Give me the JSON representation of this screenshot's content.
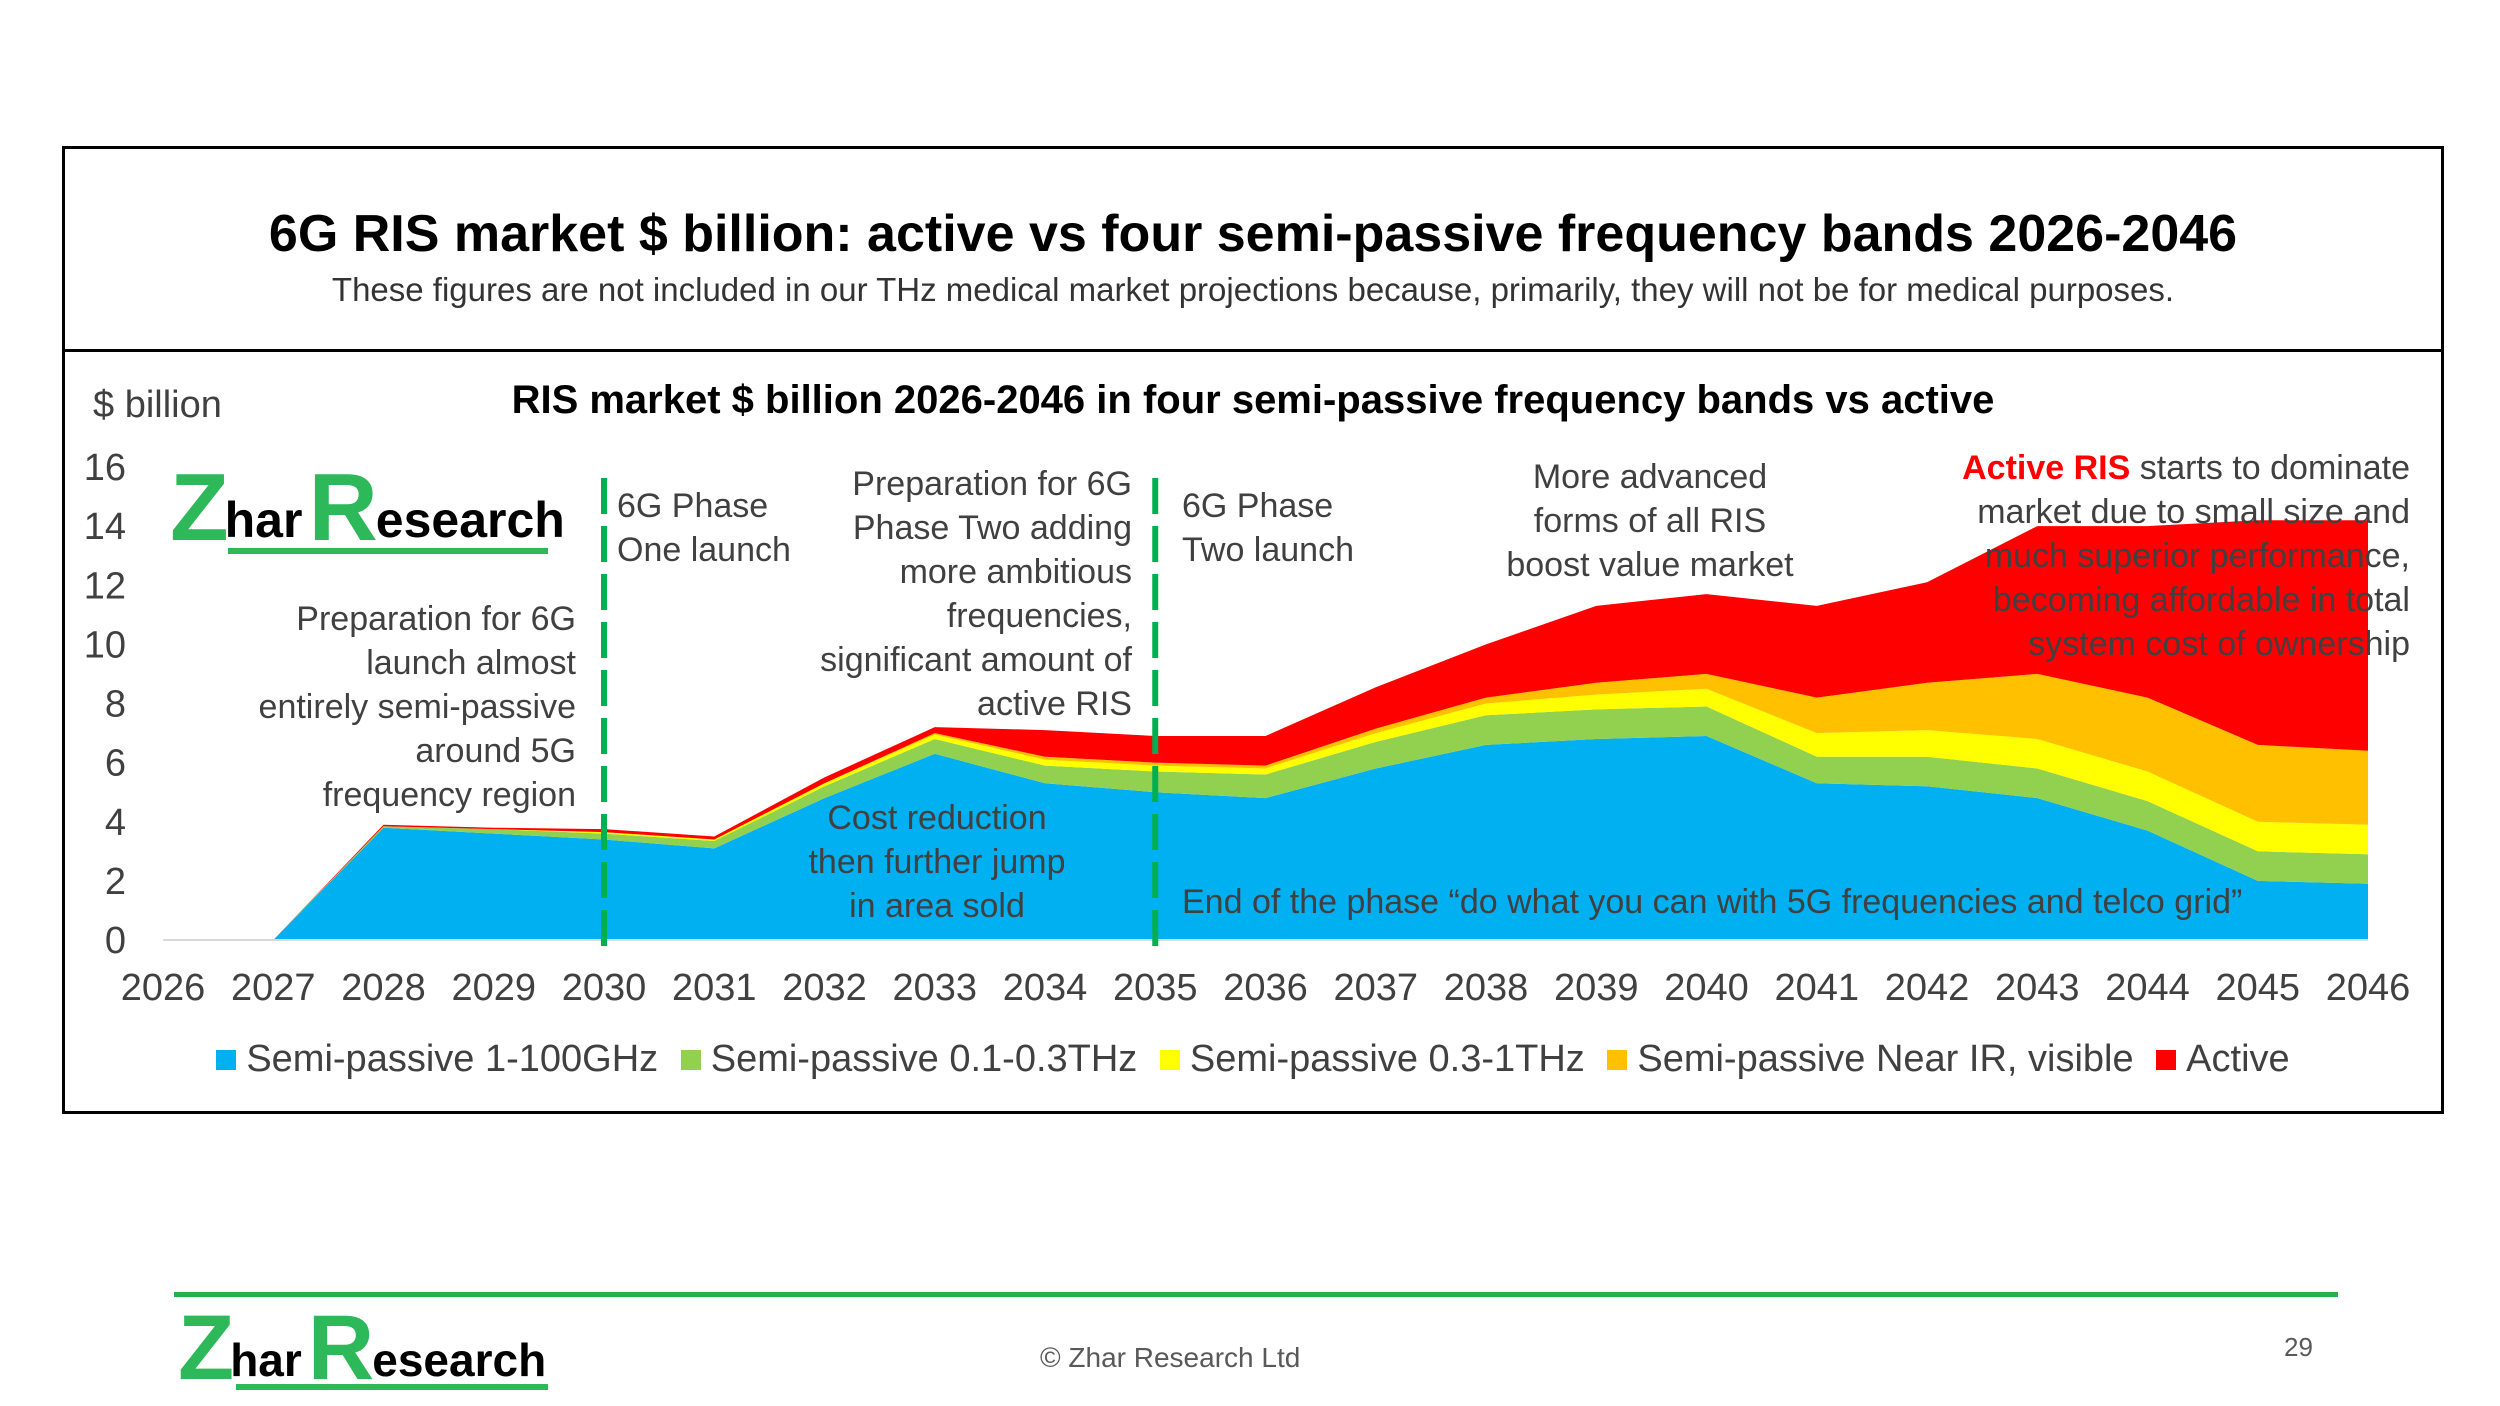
{
  "slide": {
    "title": "6G RIS market $ billion: active vs four semi-passive frequency bands 2026-2046",
    "subtitle": "These figures are not included in our THz medical market projections because, primarily, they will not be for medical purposes."
  },
  "logo": {
    "z": "Z",
    "har": "har",
    "r": "R",
    "esearch": "esearch",
    "brand_color": "#2db85a"
  },
  "chart_data": {
    "type": "area",
    "stacked": true,
    "title": "RIS market $ billion 2026-2046 in four semi-passive frequency bands vs active",
    "ylabel": "$ billion",
    "xlabel": "",
    "ylim": [
      0,
      16
    ],
    "yticks": [
      0,
      2,
      4,
      6,
      8,
      10,
      12,
      14,
      16
    ],
    "x": [
      "2026",
      "2027",
      "2028",
      "2029",
      "2030",
      "2031",
      "2032",
      "2033",
      "2034",
      "2035",
      "2036",
      "2037",
      "2038",
      "2039",
      "2040",
      "2041",
      "2042",
      "2043",
      "2044",
      "2045",
      "2046"
    ],
    "series": [
      {
        "name": "Semi-passive 1-100GHz",
        "color": "#00b0f0",
        "values": [
          0,
          0,
          3.8,
          3.6,
          3.4,
          3.1,
          4.8,
          6.3,
          5.3,
          5.0,
          4.8,
          5.8,
          6.6,
          6.8,
          6.9,
          5.3,
          5.2,
          4.8,
          3.7,
          2.0,
          1.9
        ]
      },
      {
        "name": "Semi-passive 0.1-0.3THz",
        "color": "#92d050",
        "values": [
          0,
          0,
          0.05,
          0.15,
          0.2,
          0.25,
          0.4,
          0.5,
          0.6,
          0.7,
          0.8,
          0.9,
          1.0,
          1.0,
          1.0,
          0.9,
          1.0,
          1.0,
          1.0,
          1.0,
          1.0
        ]
      },
      {
        "name": "Semi-passive 0.3-1THz",
        "color": "#ffff00",
        "values": [
          0,
          0,
          0,
          0,
          0.05,
          0.05,
          0.1,
          0.15,
          0.2,
          0.2,
          0.2,
          0.3,
          0.4,
          0.5,
          0.6,
          0.8,
          0.9,
          1.0,
          1.0,
          1.0,
          1.0
        ]
      },
      {
        "name": "Semi-passive Near IR, visible",
        "color": "#ffc000",
        "values": [
          0,
          0,
          0,
          0,
          0,
          0,
          0,
          0.05,
          0.1,
          0.1,
          0.1,
          0.15,
          0.2,
          0.4,
          0.5,
          1.2,
          1.6,
          2.2,
          2.5,
          2.6,
          2.5
        ]
      },
      {
        "name": "Active",
        "color": "#ff0000",
        "values": [
          0,
          0,
          0.05,
          0.05,
          0.1,
          0.1,
          0.2,
          0.2,
          0.9,
          0.9,
          1.0,
          1.4,
          1.8,
          2.6,
          2.7,
          3.1,
          3.4,
          5.0,
          5.8,
          7.6,
          7.8
        ]
      }
    ],
    "phase_markers": [
      "2030",
      "2035"
    ],
    "marker_color": "#00b050",
    "annotations": {
      "phase1_prep": [
        "Preparation for 6G",
        "launch almost",
        "entirely semi-passive",
        "around  5G",
        "frequency region"
      ],
      "phase1_launch": [
        "6G Phase",
        "One launch"
      ],
      "phase2_prep": [
        "Preparation for 6G",
        "Phase Two adding",
        "more ambitious",
        "frequencies,",
        "significant amount of",
        "active RIS"
      ],
      "phase2_launch": [
        "6G Phase",
        "Two launch"
      ],
      "advanced": [
        "More advanced",
        "forms of all RIS",
        "boost value market"
      ],
      "active_ris_bold": "Active RIS",
      "active_ris_rest": [
        " starts to dominate",
        "market due to small size and",
        "much superior performance,",
        "becoming affordable in total",
        "system cost of ownership"
      ],
      "cost_reduction": [
        "Cost reduction",
        "then further jump",
        "in area sold"
      ],
      "end_phase": "End of the phase “do what you can with 5G frequencies and telco grid”"
    }
  },
  "footer": {
    "copyright": "© Zhar Research Ltd",
    "page_number": "29"
  }
}
